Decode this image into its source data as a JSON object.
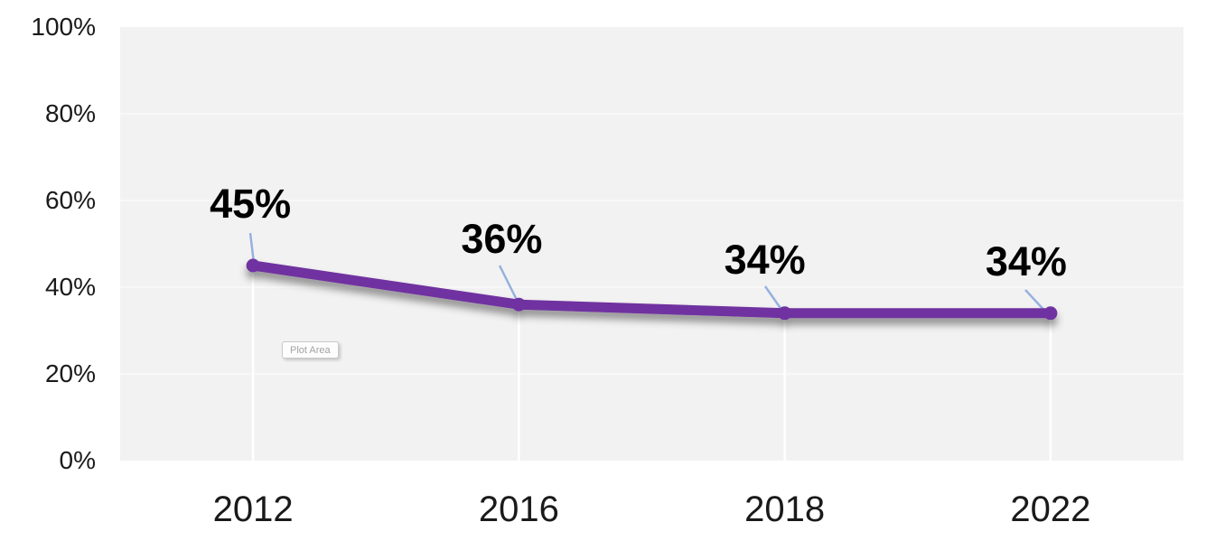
{
  "chart_data": {
    "type": "line",
    "title": "",
    "categories": [
      "2012",
      "2016",
      "2018",
      "2022"
    ],
    "series": [
      {
        "name": "share",
        "values": [
          45,
          36,
          34,
          34
        ],
        "color": "#7030a0"
      }
    ],
    "data_labels": [
      "45%",
      "36%",
      "34%",
      "34%"
    ],
    "y_ticks": [
      "100%",
      "80%",
      "60%",
      "40%",
      "20%",
      "0%"
    ],
    "ylim": [
      0,
      100
    ],
    "xlabel": "",
    "ylabel": "",
    "grid": "horizontal",
    "legend": "none",
    "plot_bg_color": "#f2f2f2",
    "gridline_color": "#f8f8f8",
    "leader_line_color": "#96b1de",
    "drop_line_color": "#ffffff",
    "axis_text_color": "#1a1a1a"
  },
  "tooltip": {
    "label": "Plot Area"
  }
}
